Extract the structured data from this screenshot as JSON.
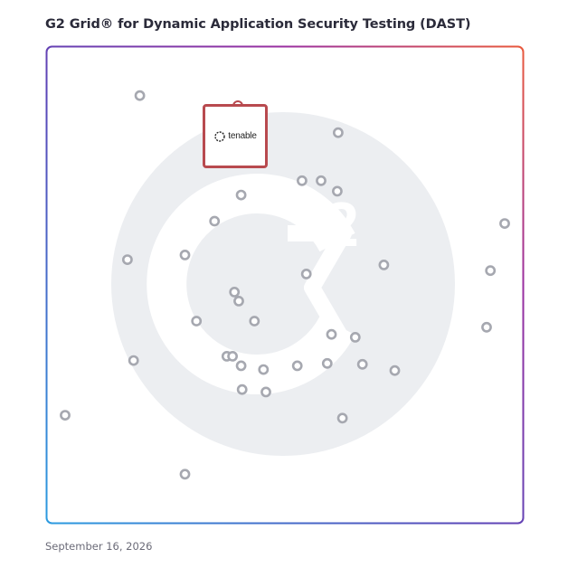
{
  "title": "G2 Grid® for Dynamic Application Security Testing (DAST)",
  "date": "September 16, 2026",
  "featured_vendor": {
    "name": "tenable",
    "icon": "tenable-logo-icon",
    "color": "#b84a4f"
  },
  "colors": {
    "dot": "#a6a8b0",
    "watermark": "#eceef1",
    "frame_gradient": [
      "#2b9be0",
      "#5a46b8",
      "#9a2fa0",
      "#e9593c"
    ],
    "divider_vertical": "#8a5ab8",
    "divider_horizontal": "#5a6fc0"
  },
  "chart_data": {
    "type": "scatter",
    "title": "G2 Grid® for Dynamic Application Security Testing (DAST)",
    "xlabel": "",
    "ylabel": "",
    "xlim": [
      0,
      100
    ],
    "ylim": [
      0,
      100
    ],
    "grid": "quadrants",
    "points": [
      {
        "x": 19.5,
        "y": 89.8
      },
      {
        "x": 40.5,
        "y": 88.9,
        "label": "tenable",
        "highlight": true
      },
      {
        "x": 61.2,
        "y": 82.0
      },
      {
        "x": 53.6,
        "y": 71.9
      },
      {
        "x": 57.6,
        "y": 71.9
      },
      {
        "x": 61.0,
        "y": 69.7
      },
      {
        "x": 40.8,
        "y": 68.9
      },
      {
        "x": 35.2,
        "y": 63.4
      },
      {
        "x": 96.2,
        "y": 62.9
      },
      {
        "x": 29.0,
        "y": 56.3
      },
      {
        "x": 16.9,
        "y": 55.3
      },
      {
        "x": 70.8,
        "y": 54.2
      },
      {
        "x": 93.2,
        "y": 53.0
      },
      {
        "x": 54.5,
        "y": 52.3
      },
      {
        "x": 39.4,
        "y": 48.5
      },
      {
        "x": 40.3,
        "y": 46.6
      },
      {
        "x": 43.6,
        "y": 42.4
      },
      {
        "x": 31.4,
        "y": 42.4
      },
      {
        "x": 92.4,
        "y": 41.1
      },
      {
        "x": 59.8,
        "y": 39.6
      },
      {
        "x": 64.8,
        "y": 39.0
      },
      {
        "x": 37.8,
        "y": 35.0
      },
      {
        "x": 39.0,
        "y": 35.0
      },
      {
        "x": 18.2,
        "y": 34.1
      },
      {
        "x": 40.8,
        "y": 33.0
      },
      {
        "x": 52.6,
        "y": 33.0
      },
      {
        "x": 58.9,
        "y": 33.5
      },
      {
        "x": 66.3,
        "y": 33.3
      },
      {
        "x": 45.5,
        "y": 32.2
      },
      {
        "x": 73.1,
        "y": 32.0
      },
      {
        "x": 41.0,
        "y": 28.0
      },
      {
        "x": 46.0,
        "y": 27.5
      },
      {
        "x": 3.8,
        "y": 22.6
      },
      {
        "x": 62.1,
        "y": 22.0
      },
      {
        "x": 29.0,
        "y": 10.2
      }
    ]
  }
}
